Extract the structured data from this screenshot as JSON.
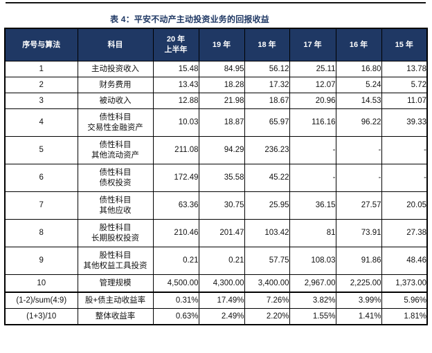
{
  "page": {
    "title": "表 4：平安不动产主动投资业务的回报收益"
  },
  "colors": {
    "header_bg": "#1F3864",
    "title_text": "#1F3864",
    "grid_border": "#000000",
    "top_rule": "#111111"
  },
  "chart_data": {
    "type": "table",
    "title": "表 4：平安不动产主动投资业务的回报收益",
    "columns": [
      [
        "序号与算法"
      ],
      [
        "科目"
      ],
      [
        "20 年",
        "上半年"
      ],
      [
        "19 年"
      ],
      [
        "18 年"
      ],
      [
        "17 年"
      ],
      [
        "16 年"
      ],
      [
        "15 年"
      ]
    ],
    "rows": [
      {
        "id": "1",
        "subject": [
          "主动投资收入"
        ],
        "values": [
          "15.48",
          "84.95",
          "56.12",
          "25.11",
          "16.80",
          "13.78"
        ],
        "thick_top": false
      },
      {
        "id": "2",
        "subject": [
          "财务费用"
        ],
        "values": [
          "13.43",
          "18.28",
          "17.32",
          "12.07",
          "5.24",
          "5.72"
        ],
        "thick_top": false
      },
      {
        "id": "3",
        "subject": [
          "被动收入"
        ],
        "values": [
          "12.88",
          "21.98",
          "18.67",
          "20.96",
          "14.53",
          "11.07"
        ],
        "thick_top": false
      },
      {
        "id": "4",
        "subject": [
          "债性科目",
          "交易性金融资产"
        ],
        "values": [
          "10.03",
          "18.87",
          "65.97",
          "116.16",
          "96.22",
          "39.33"
        ],
        "thick_top": false
      },
      {
        "id": "5",
        "subject": [
          "债性科目",
          "其他流动资产"
        ],
        "values": [
          "211.08",
          "94.29",
          "236.23",
          "-",
          "-",
          "-"
        ],
        "thick_top": false
      },
      {
        "id": "6",
        "subject": [
          "债性科目",
          "债权投资"
        ],
        "values": [
          "172.49",
          "35.58",
          "45.22",
          "-",
          "-",
          "-"
        ],
        "thick_top": false
      },
      {
        "id": "7",
        "subject": [
          "债性科目",
          "其他应收"
        ],
        "values": [
          "63.36",
          "30.75",
          "25.95",
          "36.15",
          "27.57",
          "20.05"
        ],
        "thick_top": false
      },
      {
        "id": "8",
        "subject": [
          "股性科目",
          "长期股权投资"
        ],
        "values": [
          "210.46",
          "201.47",
          "103.42",
          "81",
          "73.91",
          "27.38"
        ],
        "thick_top": false
      },
      {
        "id": "9",
        "subject": [
          "股性科目",
          "其他权益工具投资"
        ],
        "values": [
          "0.21",
          "0.21",
          "57.75",
          "108.03",
          "91.86",
          "48.46"
        ],
        "thick_top": false
      },
      {
        "id": "10",
        "subject": [
          "管理规模"
        ],
        "values": [
          "4,500.00",
          "4,300.00",
          "3,400.00",
          "2,967.00",
          "2,225.00",
          "1,373.00"
        ],
        "thick_top": false
      },
      {
        "id": "(1-2)/sum(4:9)",
        "subject": [
          "股+债主动收益率"
        ],
        "values": [
          "0.31%",
          "17.49%",
          "7.26%",
          "3.82%",
          "3.99%",
          "5.96%"
        ],
        "thick_top": true
      },
      {
        "id": "(1+3)/10",
        "subject": [
          "整体收益率"
        ],
        "values": [
          "0.63%",
          "2.49%",
          "2.20%",
          "1.55%",
          "1.41%",
          "1.81%"
        ],
        "thick_top": false
      }
    ]
  }
}
